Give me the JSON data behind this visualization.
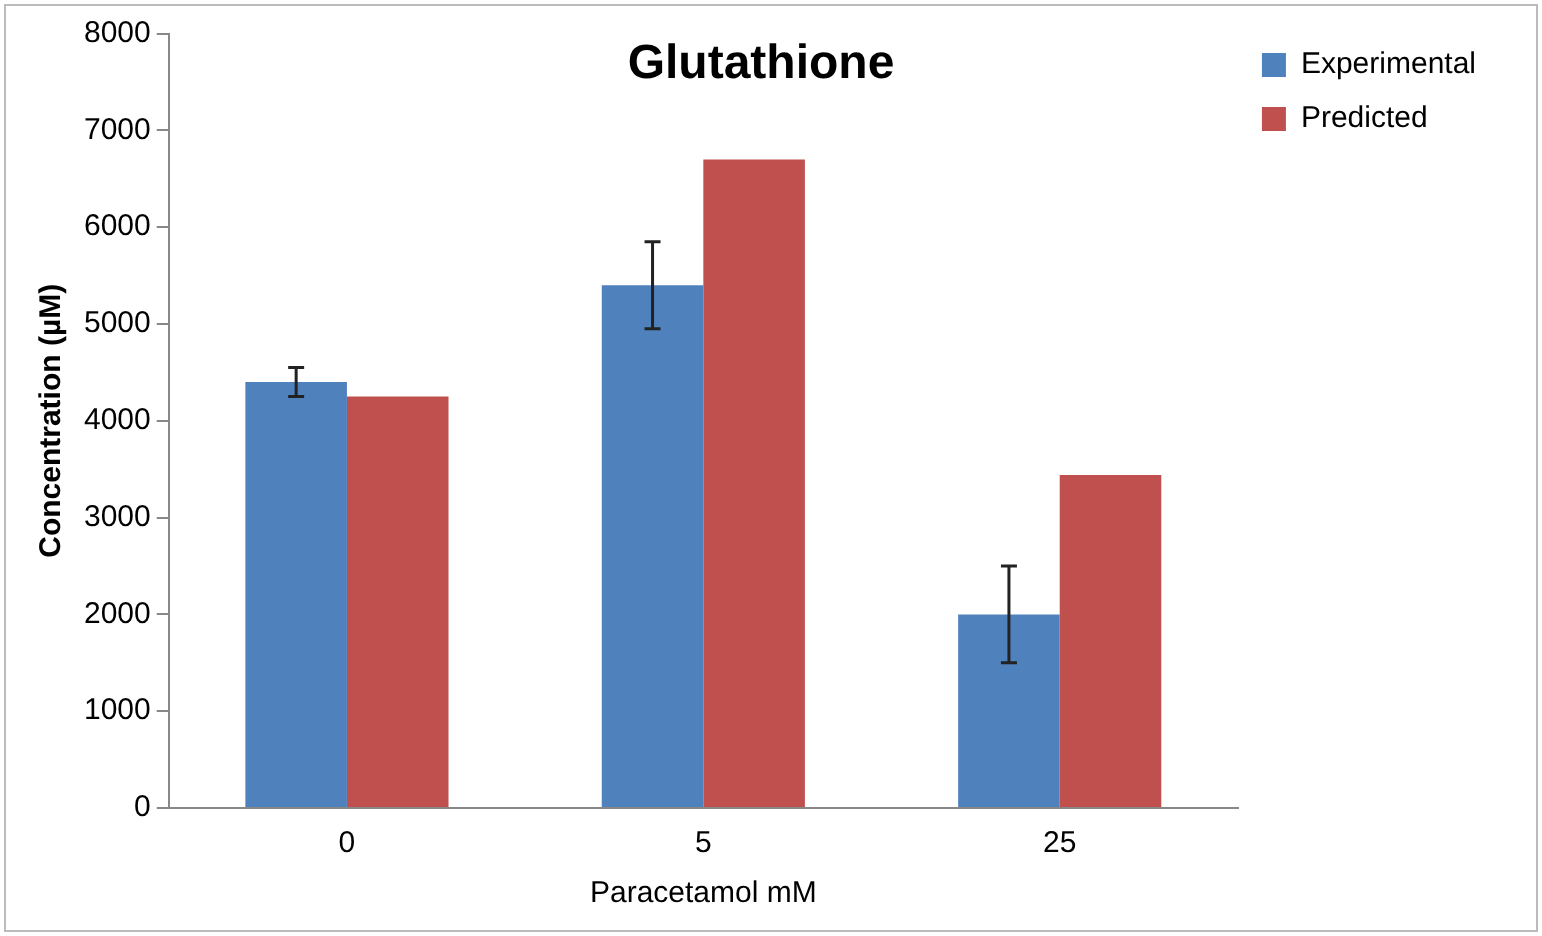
{
  "chart_data": {
    "type": "bar",
    "title": "Glutathione",
    "xlabel": "Paracetamol mM",
    "ylabel": "Concentration (µM)",
    "categories": [
      "0",
      "5",
      "25"
    ],
    "series": [
      {
        "name": "Experimental",
        "color": "#4f81bd",
        "values": [
          4400,
          5400,
          2000
        ],
        "errors": [
          150,
          450,
          500
        ]
      },
      {
        "name": "Predicted",
        "color": "#c0504d",
        "values": [
          4250,
          6700,
          3440
        ]
      }
    ],
    "ylim": [
      0,
      8000
    ],
    "yticks": [
      0,
      1000,
      2000,
      3000,
      4000,
      5000,
      6000,
      7000,
      8000
    ],
    "grid": false,
    "legend": "top right"
  }
}
